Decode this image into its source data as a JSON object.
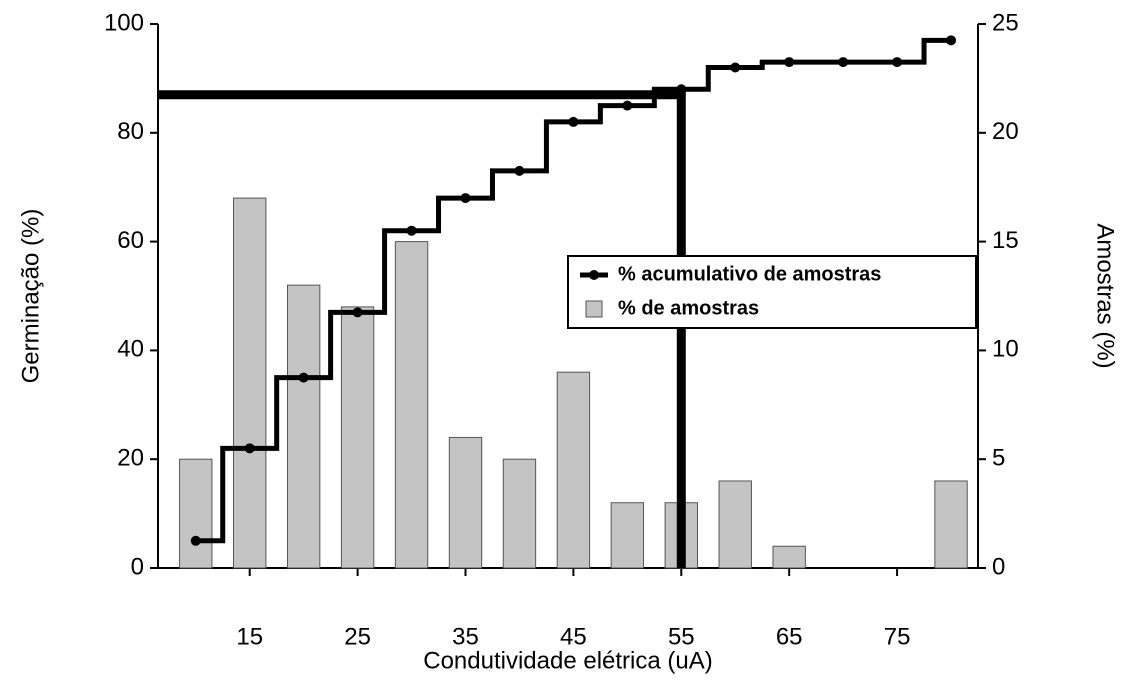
{
  "chart_data": {
    "type": "bar",
    "x": [
      10,
      15,
      20,
      25,
      30,
      35,
      40,
      45,
      50,
      55,
      60,
      65,
      70,
      75,
      80
    ],
    "xlim": [
      6.5,
      82.5
    ],
    "xticks": [
      15,
      25,
      35,
      45,
      55,
      65,
      75
    ],
    "ylim": [
      0,
      100
    ],
    "yticks": [
      0,
      20,
      40,
      60,
      80,
      100
    ],
    "y2lim": [
      0,
      25
    ],
    "y2ticks": [
      0,
      5,
      10,
      15,
      20,
      25
    ],
    "xlabel": "Condutividade elétrica (uA)",
    "ylabel": "Germinação (%)",
    "y2label": "Amostras (%)",
    "reference": {
      "x": 55,
      "y": 87
    },
    "series": [
      {
        "name": "% acumulativo de amostras",
        "type": "line",
        "step": "mid",
        "color": "#000000",
        "values": [
          5,
          22,
          35,
          47,
          62,
          68,
          73,
          82,
          85,
          88,
          92,
          93,
          93,
          93,
          97
        ]
      },
      {
        "name": "% de amostras",
        "type": "bar",
        "axis": "y2",
        "color": "#c4c4c4",
        "values": [
          5,
          17,
          13,
          12,
          15,
          6,
          5,
          9,
          3,
          3,
          4,
          1,
          0,
          0,
          4
        ]
      }
    ]
  }
}
